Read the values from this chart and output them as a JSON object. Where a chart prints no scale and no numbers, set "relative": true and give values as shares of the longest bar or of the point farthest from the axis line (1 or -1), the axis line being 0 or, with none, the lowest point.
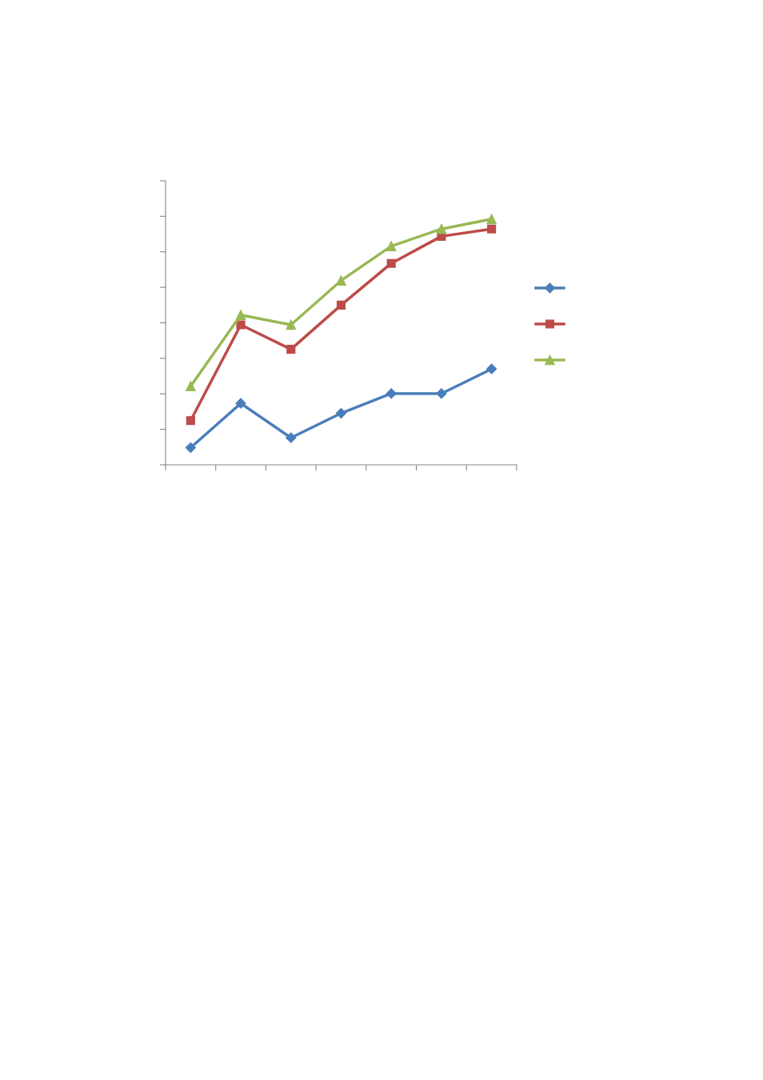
{
  "chart_data": {
    "type": "line",
    "relative": true,
    "categories": [
      null,
      null,
      null,
      null,
      null,
      null,
      null
    ],
    "series": [
      {
        "color": "#4a7ebb",
        "marker": "diamond",
        "values": [
          0.07,
          0.25,
          0.11,
          0.21,
          0.29,
          0.29,
          0.39
        ]
      },
      {
        "color": "#be4b48",
        "marker": "square",
        "values": [
          0.18,
          0.57,
          0.47,
          0.65,
          0.82,
          0.93,
          0.96
        ]
      },
      {
        "color": "#98b954",
        "marker": "triangle",
        "values": [
          0.32,
          0.61,
          0.57,
          0.75,
          0.89,
          0.96,
          1.0
        ]
      }
    ],
    "grid": false,
    "line_style": "solid"
  }
}
